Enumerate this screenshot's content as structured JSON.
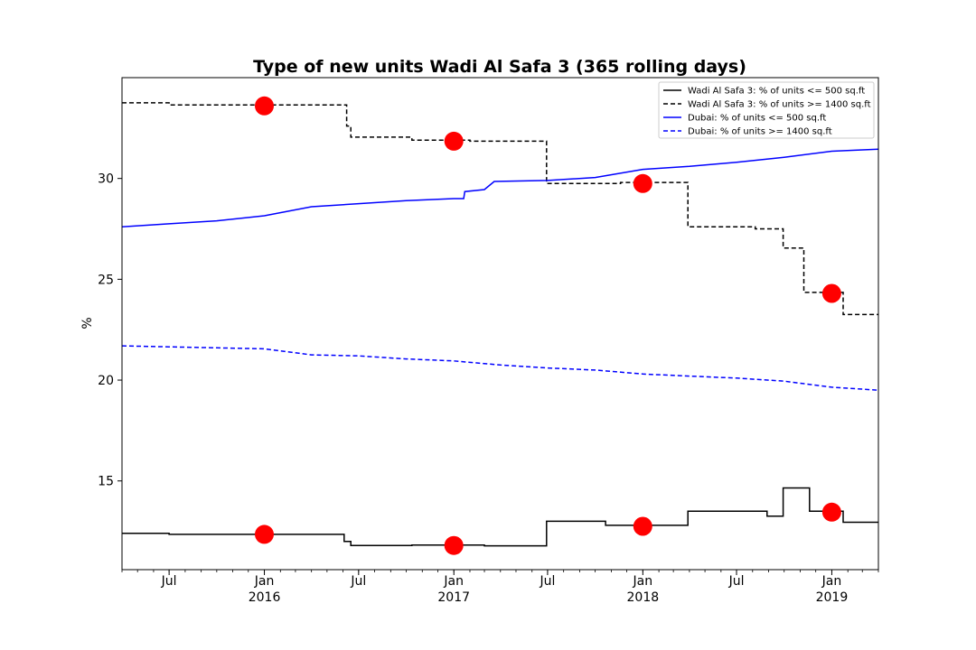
{
  "chart_data": {
    "type": "line",
    "title": "Type of new units Wadi Al Safa 3 (365 rolling days)",
    "xlabel": "",
    "ylabel": "%",
    "xlim": [
      "2015-04-01",
      "2019-04-01"
    ],
    "ylim": [
      10.6,
      35.0
    ],
    "y_ticks": [
      15,
      20,
      25,
      30
    ],
    "x_ticks": [
      {
        "date": "2015-07-01",
        "label": "Jul",
        "sub": ""
      },
      {
        "date": "2016-01-01",
        "label": "Jan",
        "sub": "2016"
      },
      {
        "date": "2016-07-01",
        "label": "Jul",
        "sub": ""
      },
      {
        "date": "2017-01-01",
        "label": "Jan",
        "sub": "2017"
      },
      {
        "date": "2017-07-01",
        "label": "Jul",
        "sub": ""
      },
      {
        "date": "2018-01-01",
        "label": "Jan",
        "sub": "2018"
      },
      {
        "date": "2018-07-01",
        "label": "Jul",
        "sub": ""
      },
      {
        "date": "2019-01-01",
        "label": "Jan",
        "sub": "2019"
      }
    ],
    "legend_position": "top-right",
    "grid": false,
    "series": [
      {
        "name": "Wadi Al Safa 3: % of units <= 500 sq.ft",
        "color": "#000000",
        "dash": "solid",
        "step": true,
        "points": [
          [
            "2015-04-01",
            12.4
          ],
          [
            "2015-07-01",
            12.35
          ],
          [
            "2016-06-01",
            12.35
          ],
          [
            "2016-06-03",
            12.0
          ],
          [
            "2016-06-16",
            11.8
          ],
          [
            "2016-10-12",
            11.82
          ],
          [
            "2017-01-01",
            11.82
          ],
          [
            "2017-03-01",
            11.78
          ],
          [
            "2017-06-29",
            13.0
          ],
          [
            "2017-10-21",
            12.8
          ],
          [
            "2018-03-29",
            13.5
          ],
          [
            "2018-08-29",
            13.25
          ],
          [
            "2018-09-29",
            14.65
          ],
          [
            "2018-11-19",
            13.5
          ],
          [
            "2019-01-23",
            12.95
          ],
          [
            "2019-04-01",
            12.95
          ]
        ]
      },
      {
        "name": "Wadi Al Safa 3: % of units >= 1400 sq.ft",
        "color": "#000000",
        "dash": "dashed",
        "step": true,
        "points": [
          [
            "2015-04-01",
            33.75
          ],
          [
            "2015-07-01",
            33.65
          ],
          [
            "2016-06-01",
            33.65
          ],
          [
            "2016-06-08",
            32.6
          ],
          [
            "2016-06-16",
            32.05
          ],
          [
            "2016-10-12",
            31.9
          ],
          [
            "2017-01-01",
            31.9
          ],
          [
            "2017-02-01",
            31.85
          ],
          [
            "2017-06-29",
            29.75
          ],
          [
            "2017-10-21",
            29.75
          ],
          [
            "2017-11-19",
            29.8
          ],
          [
            "2018-03-29",
            27.6
          ],
          [
            "2018-08-06",
            27.5
          ],
          [
            "2018-09-29",
            26.55
          ],
          [
            "2018-11-08",
            24.35
          ],
          [
            "2019-01-23",
            23.25
          ],
          [
            "2019-04-01",
            23.25
          ]
        ]
      },
      {
        "name": "Dubai: % of units <= 500 sq.ft",
        "color": "#0000ff",
        "dash": "solid",
        "step": false,
        "points": [
          [
            "2015-04-01",
            27.6
          ],
          [
            "2015-07-01",
            27.75
          ],
          [
            "2015-10-01",
            27.9
          ],
          [
            "2016-01-01",
            28.15
          ],
          [
            "2016-04-01",
            28.6
          ],
          [
            "2016-07-01",
            28.75
          ],
          [
            "2016-10-01",
            28.9
          ],
          [
            "2017-01-01",
            29.0
          ],
          [
            "2017-01-20",
            29.0
          ],
          [
            "2017-01-22",
            29.35
          ],
          [
            "2017-03-01",
            29.45
          ],
          [
            "2017-03-20",
            29.85
          ],
          [
            "2017-07-01",
            29.9
          ],
          [
            "2017-10-01",
            30.05
          ],
          [
            "2018-01-01",
            30.45
          ],
          [
            "2018-04-01",
            30.6
          ],
          [
            "2018-07-01",
            30.8
          ],
          [
            "2018-10-01",
            31.05
          ],
          [
            "2019-01-01",
            31.35
          ],
          [
            "2019-04-01",
            31.45
          ]
        ]
      },
      {
        "name": "Dubai: % of units >= 1400 sq.ft",
        "color": "#0000ff",
        "dash": "dashed",
        "step": false,
        "points": [
          [
            "2015-04-01",
            21.7
          ],
          [
            "2015-07-01",
            21.65
          ],
          [
            "2015-10-01",
            21.6
          ],
          [
            "2016-01-01",
            21.55
          ],
          [
            "2016-04-01",
            21.25
          ],
          [
            "2016-07-01",
            21.2
          ],
          [
            "2016-10-01",
            21.05
          ],
          [
            "2017-01-01",
            20.95
          ],
          [
            "2017-04-01",
            20.75
          ],
          [
            "2017-07-01",
            20.6
          ],
          [
            "2017-10-01",
            20.5
          ],
          [
            "2018-01-01",
            20.3
          ],
          [
            "2018-04-01",
            20.2
          ],
          [
            "2018-07-01",
            20.1
          ],
          [
            "2018-10-01",
            19.95
          ],
          [
            "2019-01-01",
            19.65
          ],
          [
            "2019-04-01",
            19.5
          ]
        ]
      }
    ],
    "markers": {
      "color": "#ff0000",
      "points": [
        [
          "2016-01-01",
          33.6
        ],
        [
          "2017-01-01",
          31.85
        ],
        [
          "2018-01-01",
          29.75
        ],
        [
          "2019-01-01",
          24.3
        ],
        [
          "2016-01-01",
          12.35
        ],
        [
          "2017-01-01",
          11.8
        ],
        [
          "2018-01-01",
          12.75
        ],
        [
          "2019-01-01",
          13.45
        ]
      ]
    }
  }
}
